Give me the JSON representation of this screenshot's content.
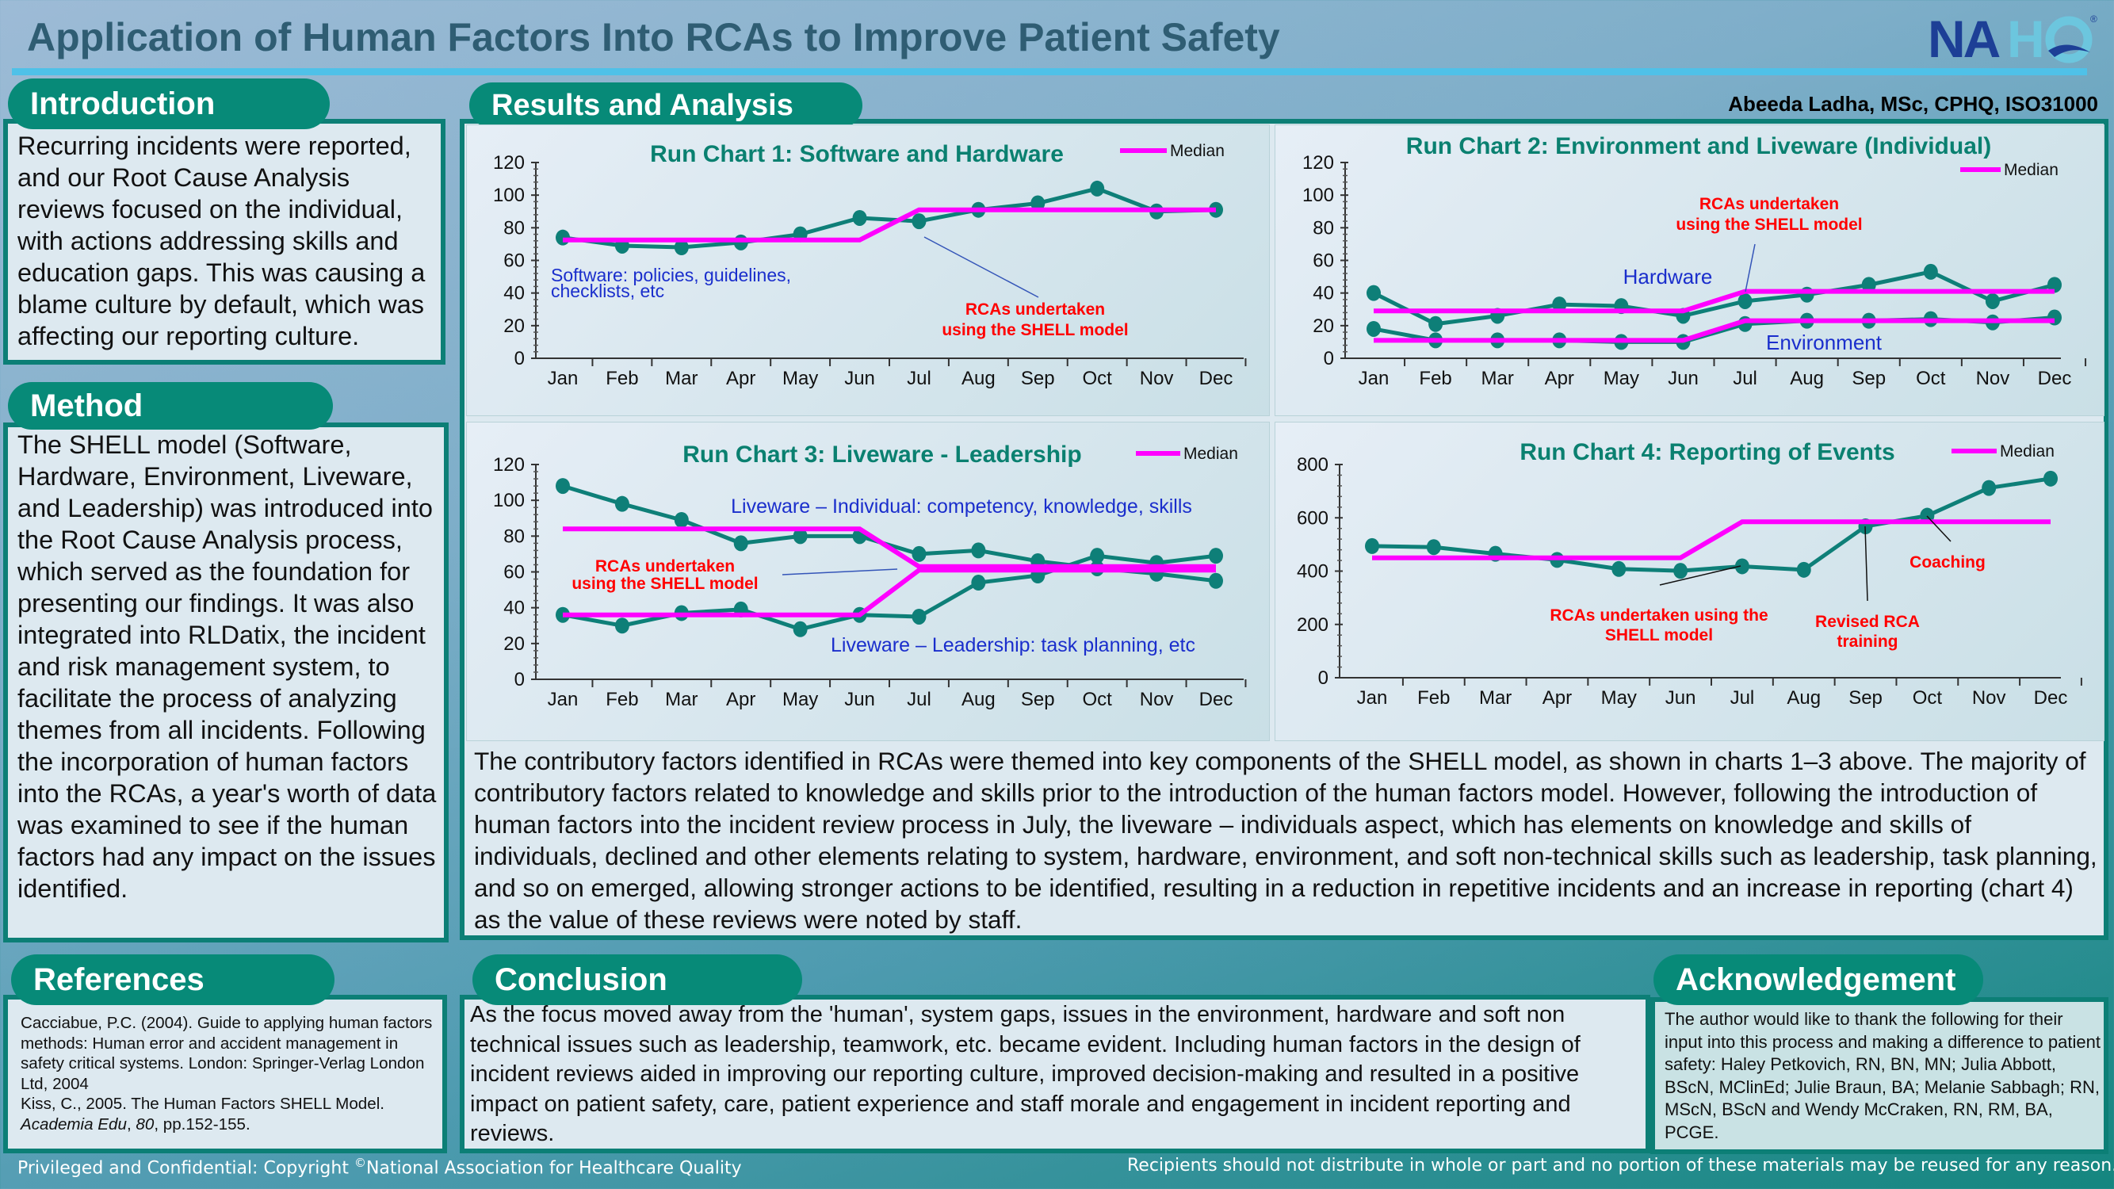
{
  "header": {
    "title": "Application of Human Factors Into RCAs to Improve Patient Safety",
    "logo": "NAHQ",
    "logo_registered": "®",
    "author": "Abeeda Ladha, MSc, CPHQ, ISO31000"
  },
  "colors": {
    "teal": "#078a78",
    "median": "#ff00ff",
    "series": "#0e7f78",
    "annotation_red": "#ff0000",
    "annotation_blue": "#1a2ecc",
    "title_teal": "#0a8070"
  },
  "introduction": {
    "heading": "Introduction",
    "text": "Recurring incidents were reported, and our Root Cause Analysis reviews focused on the individual, with actions addressing skills and education gaps. This was causing a blame culture by default, which was affecting our reporting culture."
  },
  "method": {
    "heading": "Method",
    "text": "The SHELL model (Software, Hardware, Environment, Liveware, and Leadership) was introduced into the Root Cause Analysis process, which served as the foundation for presenting our findings. It was also integrated into RLDatix, the incident and risk management system, to facilitate the process of analyzing themes from all incidents. Following the incorporation of human factors into the RCAs, a year's worth of data was examined to see if the human factors had any impact on the issues identified."
  },
  "results": {
    "heading": "Results and Analysis",
    "text": "The contributory factors identified in RCAs were themed into key components of the SHELL model, as shown in charts 1–3 above. The majority of contributory factors related to knowledge and skills prior to the introduction of the human factors model. However, following the introduction of human factors into the incident review process in July, the liveware – individuals aspect, which has elements on knowledge and skills of individuals, declined and other elements relating to system, hardware, environment, and soft non-technical skills such as leadership, task planning, and so on emerged, allowing stronger actions to be identified, resulting in a reduction in repetitive incidents and an increase in reporting (chart 4) as the value of these reviews were noted by staff."
  },
  "references": {
    "heading": "References",
    "items": [
      "Cacciabue, P.C. (2004). Guide to applying human factors methods: Human error and accident management in safety critical systems. London: Springer-Verlag London Ltd, 2004",
      "Kiss, C., 2005. The Human Factors SHELL Model. ",
      "Academia Edu",
      ", ",
      "80",
      ", pp.152-155."
    ]
  },
  "conclusion": {
    "heading": "Conclusion",
    "text": "As the focus moved away from the 'human', system gaps, issues in the environment, hardware and soft non technical issues such as leadership, teamwork, etc. became evident. Including human factors in the design of incident reviews aided in improving our reporting culture, improved decision-making and resulted in a positive impact on patient safety, care, patient experience and staff morale and engagement in incident reporting and reviews."
  },
  "acknowledgement": {
    "heading": "Acknowledgement",
    "text": "The author would like to thank the following for their input into this process and making a difference to patient safety: Haley Petkovich, RN, BN, MN; Julia Abbott, BScN, MClinEd; Julie Braun, BA; Melanie Sabbagh; RN, MScN, BScN and Wendy McCraken, RN, RM, BA, PCGE."
  },
  "footer": {
    "left_prefix": "Privileged and Confidential: Copyright ",
    "copyright_symbol": "©",
    "left_suffix": "National Association for Healthcare Quality",
    "right": "Recipients should not distribute in whole or part and no portion of these materials may be reused for any reason."
  },
  "chart_data": [
    {
      "type": "line",
      "title": "Run Chart 1: Software and Hardware",
      "categories": [
        "Jan",
        "Feb",
        "Mar",
        "Apr",
        "May",
        "Jun",
        "Jul",
        "Aug",
        "Sep",
        "Oct",
        "Nov",
        "Dec"
      ],
      "ylim": [
        0,
        120
      ],
      "yticks": [
        0,
        20,
        40,
        60,
        80,
        100,
        120
      ],
      "legend": "Median",
      "legend_position": "top-right",
      "series": [
        {
          "values": [
            74,
            69,
            68,
            71,
            76,
            86,
            84,
            91,
            95,
            104,
            90,
            91
          ]
        }
      ],
      "medians": [
        [
          72.5,
          72.5,
          72.5,
          72.5,
          72.5,
          72.5,
          91,
          91,
          91,
          91,
          91,
          91
        ]
      ],
      "annotations": [
        {
          "text": [
            "Software: policies, guidelines,",
            "checklists, etc"
          ],
          "color": "blue"
        },
        {
          "text": [
            "RCAs undertaken",
            "using the SHELL model"
          ],
          "color": "red"
        }
      ]
    },
    {
      "type": "line",
      "title": "Run Chart 2: Environment and Liveware (Individual)",
      "categories": [
        "Jan",
        "Feb",
        "Mar",
        "Apr",
        "May",
        "Jun",
        "Jul",
        "Aug",
        "Sep",
        "Oct",
        "Nov",
        "Dec"
      ],
      "ylim": [
        0,
        120
      ],
      "yticks": [
        0,
        20,
        40,
        60,
        80,
        100,
        120
      ],
      "legend": "Median",
      "legend_position": "top-right",
      "series": [
        {
          "name": "Hardware",
          "values": [
            40,
            21,
            26,
            33,
            32,
            26,
            35,
            39,
            45,
            53,
            35,
            45
          ]
        },
        {
          "name": "Environment",
          "values": [
            18,
            11,
            11,
            11,
            10,
            10,
            21,
            23,
            23,
            24,
            22,
            25
          ]
        }
      ],
      "medians": [
        [
          29,
          29,
          29,
          29,
          29,
          29,
          41,
          41,
          41,
          41,
          41,
          41
        ],
        [
          11,
          11,
          11,
          11,
          11,
          11,
          23,
          23,
          23,
          23,
          23,
          23
        ]
      ],
      "annotations": [
        {
          "text": [
            "RCAs undertaken",
            "using the SHELL model"
          ],
          "color": "red"
        }
      ]
    },
    {
      "type": "line",
      "title": "Run Chart 3: Liveware - Leadership",
      "categories": [
        "Jan",
        "Feb",
        "Mar",
        "Apr",
        "May",
        "Jun",
        "Jul",
        "Aug",
        "Sep",
        "Oct",
        "Nov",
        "Dec"
      ],
      "ylim": [
        0,
        120
      ],
      "yticks": [
        0,
        20,
        40,
        60,
        80,
        100,
        120
      ],
      "legend": "Median",
      "legend_position": "top-right",
      "series": [
        {
          "name": "Liveware – Individual: competency, knowledge, skills",
          "values": [
            108,
            98,
            89,
            76,
            80,
            80,
            70,
            72,
            66,
            62,
            59,
            55
          ]
        },
        {
          "name": "Liveware – Leadership: task planning, etc",
          "values": [
            36,
            30,
            37,
            39,
            28,
            36,
            35,
            54,
            58,
            69,
            65,
            69
          ]
        }
      ],
      "medians": [
        [
          84,
          84,
          84,
          84,
          84,
          84,
          63,
          63,
          63,
          63,
          63,
          63
        ],
        [
          36,
          36,
          36,
          36,
          36,
          36,
          61,
          61,
          61,
          61,
          61,
          61
        ]
      ],
      "annotations": [
        {
          "text": [
            "RCAs undertaken",
            "using the SHELL model"
          ],
          "color": "red"
        }
      ]
    },
    {
      "type": "line",
      "title": "Run Chart 4: Reporting of Events",
      "categories": [
        "Jan",
        "Feb",
        "Mar",
        "Apr",
        "May",
        "Jun",
        "Jul",
        "Aug",
        "Sep",
        "Oct",
        "Nov",
        "Dec"
      ],
      "ylim": [
        0,
        800
      ],
      "yticks": [
        0,
        200,
        400,
        600,
        800
      ],
      "legend": "Median",
      "legend_position": "top-right",
      "series": [
        {
          "values": [
            494,
            490,
            465,
            442,
            408,
            401,
            418,
            405,
            568,
            608,
            712,
            747
          ]
        }
      ],
      "medians": [
        [
          450,
          450,
          450,
          450,
          450,
          450,
          585,
          585,
          585,
          585,
          585,
          585
        ]
      ],
      "annotations": [
        {
          "text": [
            "RCAs undertaken using the",
            "SHELL model"
          ],
          "color": "red"
        },
        {
          "text": [
            "Revised RCA",
            "training"
          ],
          "color": "red"
        },
        {
          "text": [
            "Coaching"
          ],
          "color": "red"
        }
      ]
    }
  ]
}
